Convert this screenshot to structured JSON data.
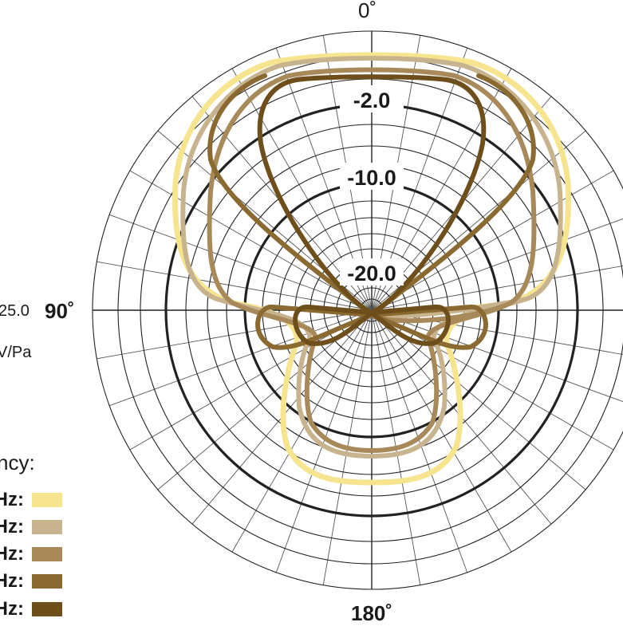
{
  "chart_data": {
    "type": "polar",
    "angle_labels": {
      "top": "0˚",
      "left": "90˚",
      "bottom": "180˚"
    },
    "radial_ticks": [
      "-2.0",
      "-10.0",
      "-20.0"
    ],
    "side_text": {
      "value": "25.0",
      "unit": "V/Pa"
    },
    "legend_title": "ncy:",
    "legend_labels": [
      "Hz:",
      "Hz:",
      "Hz:",
      "Hz:",
      "Hz:"
    ],
    "series": [
      {
        "color": "#f7e48f"
      },
      {
        "color": "#c7b48e"
      },
      {
        "color": "#a88a5a"
      },
      {
        "color": "#8a6a30"
      },
      {
        "color": "#6e4f1c"
      }
    ]
  }
}
